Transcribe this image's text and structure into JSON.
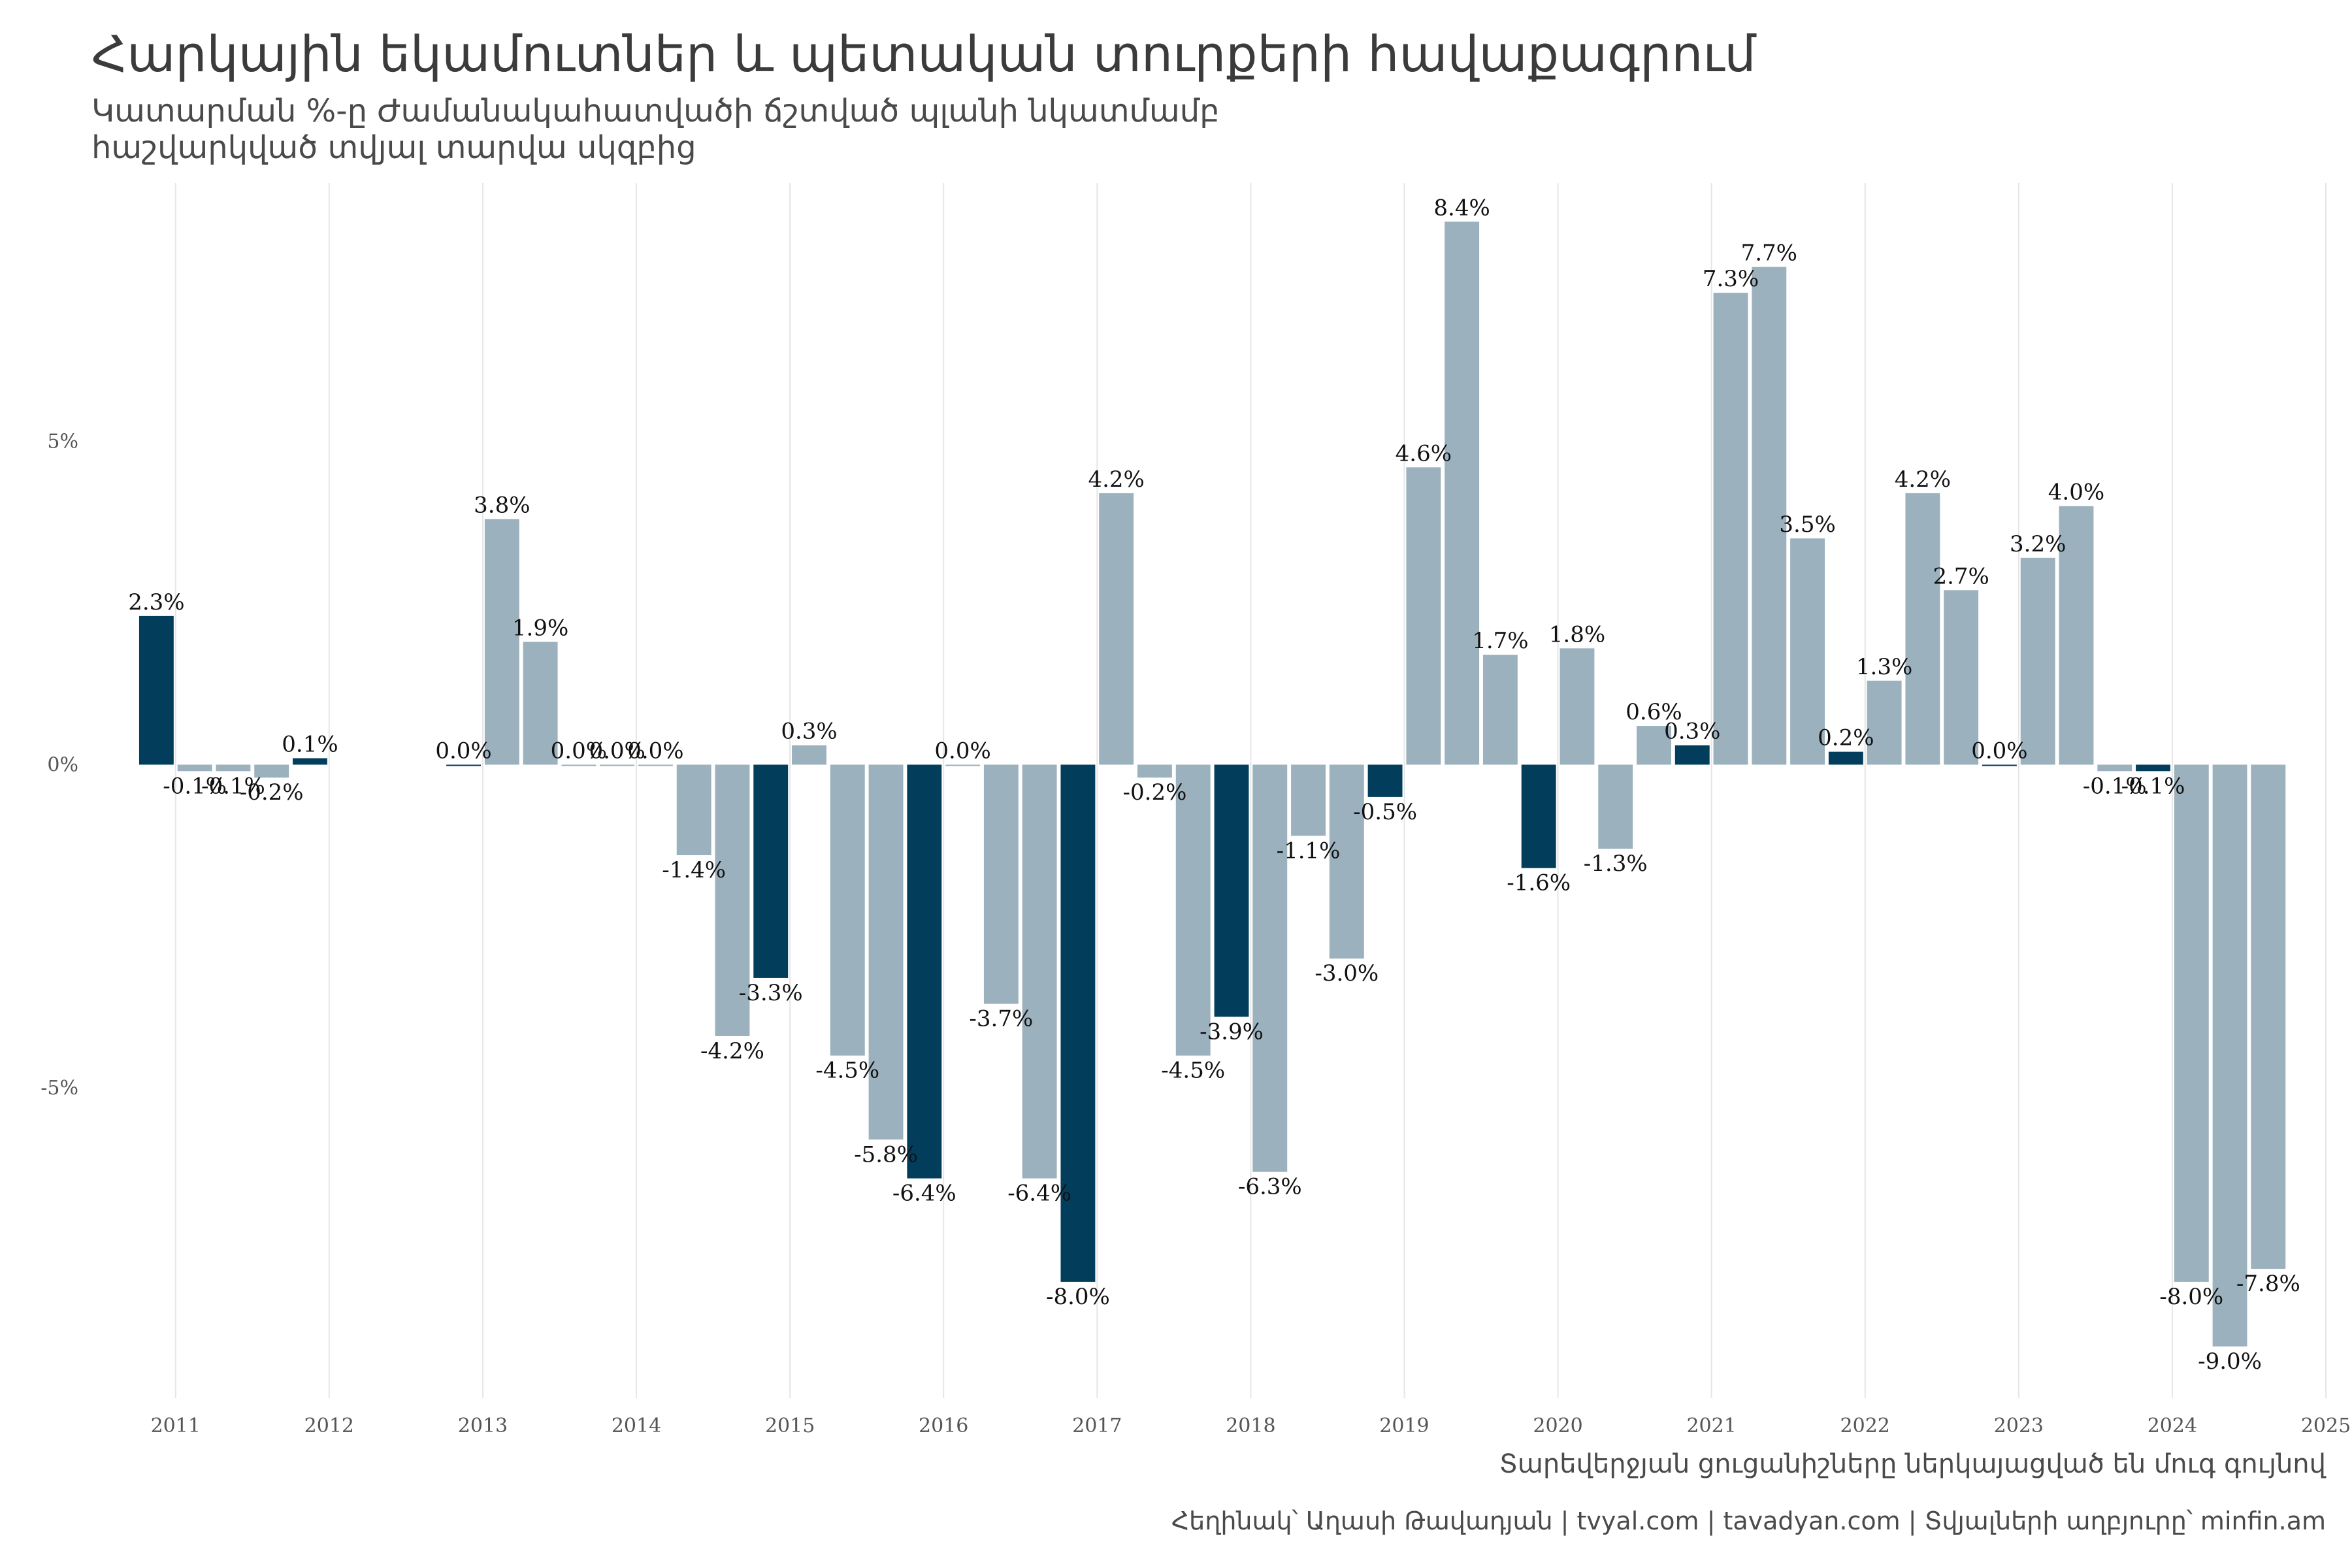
{
  "title": "Հարկային եկամուտներ և պետական տուրքերի հավաքագրում",
  "subtitle_lines": [
    "Կատարման %-ը Ժամանակահատվածի ճշտված պլանի նկատմամբ",
    "հաշվարկված տվյալ տարվա սկզբից"
  ],
  "caption_note": "Տարեվերջյան ցուցանիշները ներկայացված են մուգ գույնով",
  "credits": "Հեղինակ՝ Աղասի Թավադյան   |   tvyal.com   |   tavadyan.com    |   Տվյալների աղբյուրը՝ minfin.am",
  "colors": {
    "year_end": "#023e5c",
    "other": "#9bb1bd",
    "grid": "#e6e6e6"
  },
  "chart_data": {
    "type": "bar",
    "xlim": [
      2010.75,
      2025.0
    ],
    "ylim": [
      -9.8,
      9.0
    ],
    "x_ticks": [
      2011,
      2012,
      2013,
      2014,
      2015,
      2016,
      2017,
      2018,
      2019,
      2020,
      2021,
      2022,
      2023,
      2024,
      2025
    ],
    "x_tick_labels": [
      "2011",
      "2012",
      "2013",
      "2014",
      "2015",
      "2016",
      "2017",
      "2018",
      "2019",
      "2020",
      "2021",
      "2022",
      "2023",
      "2024",
      "2025"
    ],
    "y_ticks": [
      -5,
      0,
      5
    ],
    "y_tick_labels": [
      "-5%",
      "0%",
      "5%"
    ],
    "grid": "vertical",
    "bar_width": 0.225,
    "bars": [
      {
        "x": 2010.875,
        "value": 2.3,
        "label": "2.3%",
        "year_end": true
      },
      {
        "x": 2011.125,
        "value": -0.1,
        "label": "-0.1%",
        "year_end": false
      },
      {
        "x": 2011.375,
        "value": -0.1,
        "label": "-0.1%",
        "year_end": false
      },
      {
        "x": 2011.625,
        "value": -0.2,
        "label": "-0.2%",
        "year_end": false
      },
      {
        "x": 2011.875,
        "value": 0.1,
        "label": "0.1%",
        "year_end": true
      },
      {
        "x": 2012.875,
        "value": 0.0,
        "label": "0.0%",
        "year_end": true
      },
      {
        "x": 2013.125,
        "value": 3.8,
        "label": "3.8%",
        "year_end": false
      },
      {
        "x": 2013.375,
        "value": 1.9,
        "label": "1.9%",
        "year_end": false
      },
      {
        "x": 2013.625,
        "value": 0.0,
        "label": "0.0%",
        "year_end": false
      },
      {
        "x": 2013.875,
        "value": 0.0,
        "label": "0.0%",
        "year_end": false
      },
      {
        "x": 2014.125,
        "value": 0.0,
        "label": "0.0%",
        "year_end": false
      },
      {
        "x": 2014.375,
        "value": -1.4,
        "label": "-1.4%",
        "year_end": false
      },
      {
        "x": 2014.625,
        "value": -4.2,
        "label": "-4.2%",
        "year_end": false
      },
      {
        "x": 2014.875,
        "value": -3.3,
        "label": "-3.3%",
        "year_end": true
      },
      {
        "x": 2015.125,
        "value": 0.3,
        "label": "0.3%",
        "year_end": false
      },
      {
        "x": 2015.375,
        "value": -4.5,
        "label": "-4.5%",
        "year_end": false
      },
      {
        "x": 2015.625,
        "value": -5.8,
        "label": "-5.8%",
        "year_end": false
      },
      {
        "x": 2015.875,
        "value": -6.4,
        "label": "-6.4%",
        "year_end": true
      },
      {
        "x": 2016.125,
        "value": 0.0,
        "label": "0.0%",
        "year_end": false
      },
      {
        "x": 2016.375,
        "value": -3.7,
        "label": "-3.7%",
        "year_end": false
      },
      {
        "x": 2016.625,
        "value": -6.4,
        "label": "-6.4%",
        "year_end": false
      },
      {
        "x": 2016.875,
        "value": -8.0,
        "label": "-8.0%",
        "year_end": true
      },
      {
        "x": 2017.125,
        "value": 4.2,
        "label": "4.2%",
        "year_end": false
      },
      {
        "x": 2017.375,
        "value": -0.2,
        "label": "-0.2%",
        "year_end": false
      },
      {
        "x": 2017.625,
        "value": -4.5,
        "label": "-4.5%",
        "year_end": false
      },
      {
        "x": 2017.875,
        "value": -3.9,
        "label": "-3.9%",
        "year_end": true
      },
      {
        "x": 2018.125,
        "value": -6.3,
        "label": "-6.3%",
        "year_end": false
      },
      {
        "x": 2018.375,
        "value": -1.1,
        "label": "-1.1%",
        "year_end": false
      },
      {
        "x": 2018.625,
        "value": -3.0,
        "label": "-3.0%",
        "year_end": false
      },
      {
        "x": 2018.875,
        "value": -0.5,
        "label": "-0.5%",
        "year_end": true
      },
      {
        "x": 2019.125,
        "value": 4.6,
        "label": "4.6%",
        "year_end": false
      },
      {
        "x": 2019.375,
        "value": 8.4,
        "label": "8.4%",
        "year_end": false
      },
      {
        "x": 2019.625,
        "value": 1.7,
        "label": "1.7%",
        "year_end": false
      },
      {
        "x": 2019.875,
        "value": -1.6,
        "label": "-1.6%",
        "year_end": true
      },
      {
        "x": 2020.125,
        "value": 1.8,
        "label": "1.8%",
        "year_end": false
      },
      {
        "x": 2020.375,
        "value": -1.3,
        "label": "-1.3%",
        "year_end": false
      },
      {
        "x": 2020.625,
        "value": 0.6,
        "label": "0.6%",
        "year_end": false
      },
      {
        "x": 2020.875,
        "value": 0.3,
        "label": "0.3%",
        "year_end": true
      },
      {
        "x": 2021.125,
        "value": 7.3,
        "label": "7.3%",
        "year_end": false
      },
      {
        "x": 2021.375,
        "value": 7.7,
        "label": "7.7%",
        "year_end": false
      },
      {
        "x": 2021.625,
        "value": 3.5,
        "label": "3.5%",
        "year_end": false
      },
      {
        "x": 2021.875,
        "value": 0.2,
        "label": "0.2%",
        "year_end": true
      },
      {
        "x": 2022.125,
        "value": 1.3,
        "label": "1.3%",
        "year_end": false
      },
      {
        "x": 2022.375,
        "value": 4.2,
        "label": "4.2%",
        "year_end": false
      },
      {
        "x": 2022.625,
        "value": 2.7,
        "label": "2.7%",
        "year_end": false
      },
      {
        "x": 2022.875,
        "value": 0.0,
        "label": "0.0%",
        "year_end": true
      },
      {
        "x": 2023.125,
        "value": 3.2,
        "label": "3.2%",
        "year_end": false
      },
      {
        "x": 2023.375,
        "value": 4.0,
        "label": "4.0%",
        "year_end": false
      },
      {
        "x": 2023.625,
        "value": -0.1,
        "label": "-0.1%",
        "year_end": false
      },
      {
        "x": 2023.875,
        "value": -0.1,
        "label": "-0.1%",
        "year_end": true
      },
      {
        "x": 2024.125,
        "value": -8.0,
        "label": "-8.0%",
        "year_end": false
      },
      {
        "x": 2024.375,
        "value": -9.0,
        "label": "-9.0%",
        "year_end": false
      },
      {
        "x": 2024.625,
        "value": -7.8,
        "label": "-7.8%",
        "year_end": false
      }
    ]
  }
}
